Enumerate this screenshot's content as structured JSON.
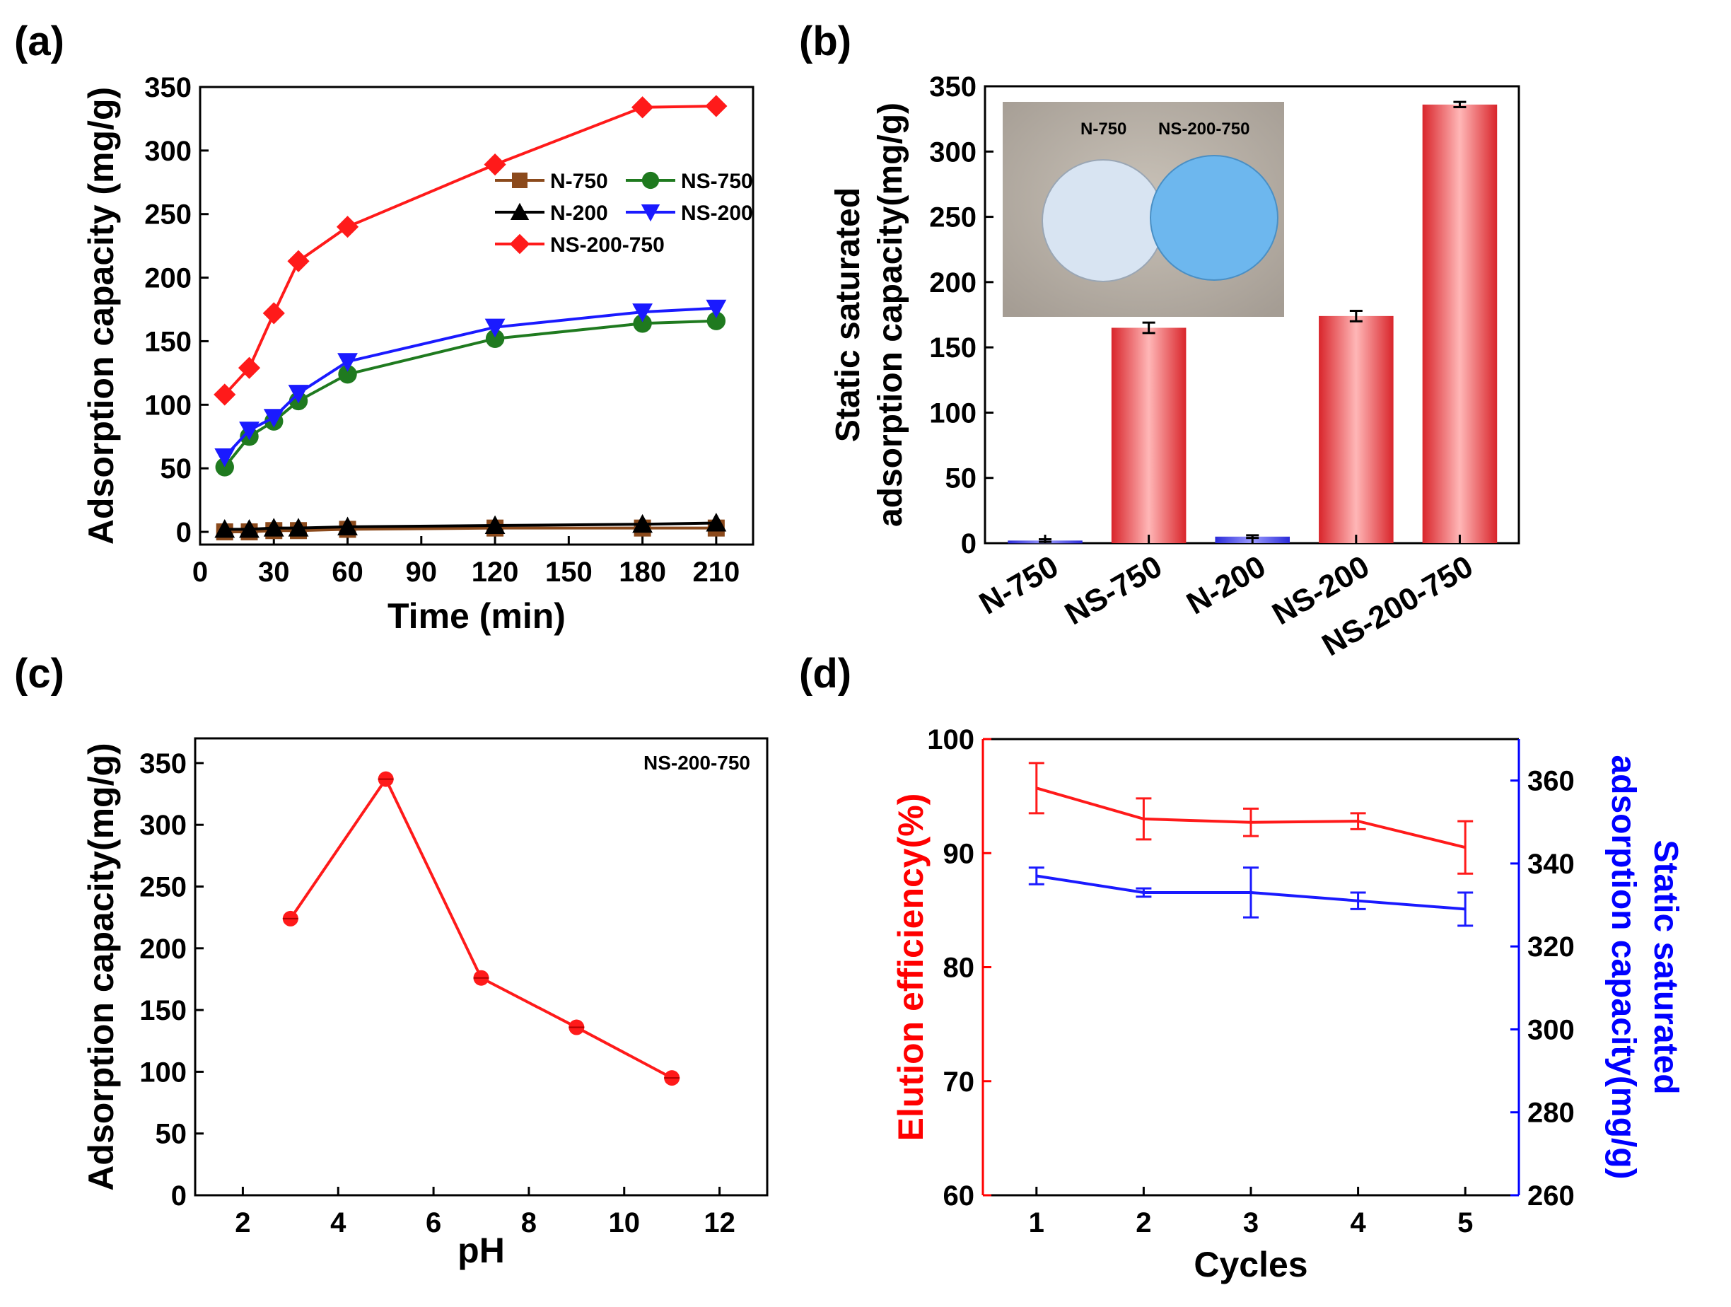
{
  "chart_data": [
    {
      "panel": "(a)",
      "type": "line",
      "xlabel": "Time (min)",
      "ylabel": "Adsorption capacity (mg/g)",
      "xlim": [
        0,
        225
      ],
      "ylim": [
        -10,
        350
      ],
      "xticks": [
        "0",
        "30",
        "60",
        "90",
        "120",
        "150",
        "180",
        "210"
      ],
      "yticks": [
        "0",
        "50",
        "100",
        "150",
        "200",
        "250",
        "300",
        "350"
      ],
      "legend_position": "top-right",
      "x": [
        10,
        20,
        30,
        40,
        60,
        120,
        180,
        210
      ],
      "series": [
        {
          "name": "N-750",
          "color": "#8b4a1c",
          "marker": "square",
          "values": [
            0,
            0,
            1,
            1,
            2,
            3,
            3,
            3
          ]
        },
        {
          "name": "NS-750",
          "color": "#1f7a1f",
          "marker": "circle",
          "values": [
            51,
            75,
            87,
            103,
            124,
            152,
            164,
            166
          ]
        },
        {
          "name": "N-200",
          "color": "#000000",
          "marker": "triangle-up",
          "values": [
            2,
            2,
            3,
            3,
            4,
            5,
            6,
            7
          ]
        },
        {
          "name": "NS-200",
          "color": "#1a1aff",
          "marker": "triangle-down",
          "values": [
            59,
            80,
            90,
            109,
            134,
            161,
            173,
            176
          ]
        },
        {
          "name": "NS-200-750",
          "color": "#ff1a1a",
          "marker": "diamond",
          "values": [
            108,
            129,
            172,
            213,
            240,
            289,
            334,
            335
          ]
        }
      ]
    },
    {
      "panel": "(b)",
      "type": "bar",
      "ylabel_lines": [
        "Static saturated",
        "adsorption capacity(mg/g)"
      ],
      "ylim": [
        0,
        350
      ],
      "yticks": [
        "0",
        "50",
        "100",
        "150",
        "200",
        "250",
        "300",
        "350"
      ],
      "categories": [
        "N-750",
        "NS-750",
        "N-200",
        "NS-200",
        "NS-200-750"
      ],
      "values": [
        2,
        165,
        5,
        174,
        336
      ],
      "errors": [
        1,
        4,
        1,
        4,
        2
      ],
      "bar_colors": [
        "#2b2be0",
        "#e23030",
        "#2b2be0",
        "#e23030",
        "#e23030"
      ],
      "inset_labels": [
        "N-750",
        "NS-200-750"
      ]
    },
    {
      "panel": "(c)",
      "type": "scatter",
      "xlabel": "pH",
      "ylabel": "Adsorption capacity(mg/g)",
      "xlim": [
        1,
        13
      ],
      "ylim": [
        0,
        370
      ],
      "xticks": [
        "2",
        "4",
        "6",
        "8",
        "10",
        "12"
      ],
      "yticks": [
        "0",
        "50",
        "100",
        "150",
        "200",
        "250",
        "300",
        "350"
      ],
      "annotation": "NS-200-750",
      "color": "#ff1a1a",
      "x": [
        3,
        5,
        7,
        9,
        11
      ],
      "values": [
        224,
        337,
        176,
        136,
        95
      ]
    },
    {
      "panel": "(d)",
      "type": "line",
      "xlabel": "Cycles",
      "xlim": [
        0.5,
        5.5
      ],
      "xticks": [
        "1",
        "2",
        "3",
        "4",
        "5"
      ],
      "x": [
        1,
        2,
        3,
        4,
        5
      ],
      "left_axis": {
        "label": "Elution efficiency(%)",
        "ylim": [
          60,
          100
        ],
        "yticks": [
          "60",
          "70",
          "80",
          "90",
          "100"
        ],
        "color": "#ff0000"
      },
      "right_axis": {
        "label_lines": [
          "Static saturated",
          "adsorption capacity(mg/g)"
        ],
        "ylim": [
          260,
          370
        ],
        "yticks": [
          "260",
          "280",
          "300",
          "320",
          "340",
          "360"
        ],
        "color": "#0000ff"
      },
      "series": [
        {
          "axis": "left",
          "color": "#ff1a1a",
          "values": [
            95.7,
            93.0,
            92.7,
            92.8,
            90.5
          ],
          "errors": [
            2.2,
            1.8,
            1.2,
            0.7,
            2.3
          ]
        },
        {
          "axis": "right",
          "color": "#1a1aff",
          "values": [
            337,
            333,
            333,
            331,
            329
          ],
          "errors": [
            2,
            1,
            6,
            2,
            4
          ]
        }
      ]
    }
  ]
}
